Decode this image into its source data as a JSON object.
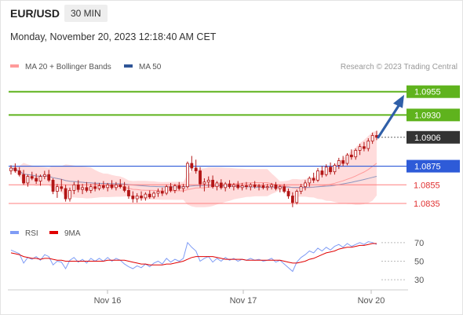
{
  "header": {
    "symbol": "EUR/USD",
    "timeframe": "30 MIN",
    "datetime": "Monday, November 20, 2023 12:18:40 AM CET"
  },
  "legend": {
    "ma20_label": "MA 20 + Bollinger Bands",
    "ma50_label": "MA 50",
    "credit": "Research © 2023 Trading Central"
  },
  "colors": {
    "resistance": "#5fb31d",
    "support": "#ff7f7f",
    "pivot": "#2e5bd8",
    "current": "#333333",
    "arrow": "#2f5fa8",
    "candle": "#b31616",
    "bollinger_fill": "#ffd6d6",
    "ma20": "#ff9a9a",
    "ma50": "#8c96be",
    "rsi": "#7f9cf5",
    "rsi_ma": "#e00000"
  },
  "chart_data": [
    {
      "type": "candlestick",
      "timeframe": "30 MIN",
      "ylim": [
        1.0808,
        1.0975
      ],
      "x_tick_labels": [
        "Nov 16",
        "Nov 17",
        "Nov 20"
      ],
      "levels": [
        {
          "name": "resistance-2",
          "value": 1.0955,
          "label": "1.0955",
          "style": "resistance"
        },
        {
          "name": "resistance-1",
          "value": 1.093,
          "label": "1.0930",
          "style": "resistance"
        },
        {
          "name": "current-price",
          "value": 1.0906,
          "label": "1.0906",
          "style": "current"
        },
        {
          "name": "pivot",
          "value": 1.0875,
          "label": "1.0875",
          "style": "pivot"
        },
        {
          "name": "support-1",
          "value": 1.0855,
          "label": "1.0855",
          "style": "support"
        },
        {
          "name": "support-2",
          "value": 1.0835,
          "label": "1.0835",
          "style": "support"
        }
      ],
      "trend_arrow": {
        "from": 1.0906,
        "to": 1.0945
      },
      "series": [
        {
          "name": "MA 20 + Bollinger Bands",
          "indicator": "ma20"
        },
        {
          "name": "MA 50",
          "indicator": "ma50"
        }
      ],
      "candles": [
        [
          1.087,
          1.0876,
          1.0866,
          1.0873
        ],
        [
          1.0873,
          1.0878,
          1.0868,
          1.087
        ],
        [
          1.087,
          1.0874,
          1.0864,
          1.0866
        ],
        [
          1.0866,
          1.0871,
          1.0855,
          1.0857
        ],
        [
          1.0857,
          1.0866,
          1.0853,
          1.0864
        ],
        [
          1.0864,
          1.0869,
          1.086,
          1.0862
        ],
        [
          1.0862,
          1.0867,
          1.0856,
          1.0859
        ],
        [
          1.0859,
          1.0866,
          1.0854,
          1.0864
        ],
        [
          1.0864,
          1.087,
          1.0861,
          1.0866
        ],
        [
          1.0866,
          1.0871,
          1.0858,
          1.086
        ],
        [
          1.086,
          1.0862,
          1.0845,
          1.0848
        ],
        [
          1.0848,
          1.0856,
          1.0841,
          1.0853
        ],
        [
          1.0853,
          1.0861,
          1.0848,
          1.0851
        ],
        [
          1.0851,
          1.0855,
          1.0837,
          1.084
        ],
        [
          1.084,
          1.0852,
          1.0837,
          1.0849
        ],
        [
          1.0849,
          1.0858,
          1.0845,
          1.0855
        ],
        [
          1.0855,
          1.086,
          1.0847,
          1.085
        ],
        [
          1.085,
          1.0856,
          1.0845,
          1.0852
        ],
        [
          1.0852,
          1.0858,
          1.0847,
          1.0849
        ],
        [
          1.0849,
          1.0856,
          1.0846,
          1.0853
        ],
        [
          1.0853,
          1.0858,
          1.0848,
          1.0851
        ],
        [
          1.0851,
          1.0857,
          1.0849,
          1.0854
        ],
        [
          1.0854,
          1.0859,
          1.085,
          1.0852
        ],
        [
          1.0852,
          1.0857,
          1.0848,
          1.0855
        ],
        [
          1.0855,
          1.086,
          1.085,
          1.0852
        ],
        [
          1.0852,
          1.0858,
          1.0849,
          1.0855
        ],
        [
          1.0855,
          1.0861,
          1.0851,
          1.0853
        ],
        [
          1.0853,
          1.0858,
          1.0847,
          1.0849
        ],
        [
          1.0849,
          1.0854,
          1.084,
          1.0843
        ],
        [
          1.0843,
          1.0848,
          1.0836,
          1.084
        ],
        [
          1.084,
          1.0846,
          1.0836,
          1.0843
        ],
        [
          1.0843,
          1.0848,
          1.0838,
          1.0841
        ],
        [
          1.0841,
          1.0847,
          1.0838,
          1.0845
        ],
        [
          1.0845,
          1.0849,
          1.084,
          1.0842
        ],
        [
          1.0842,
          1.0848,
          1.084,
          1.0846
        ],
        [
          1.0846,
          1.0851,
          1.0842,
          1.0848
        ],
        [
          1.0848,
          1.0852,
          1.0843,
          1.0846
        ],
        [
          1.0846,
          1.0855,
          1.0844,
          1.0853
        ],
        [
          1.0853,
          1.0857,
          1.0847,
          1.0849
        ],
        [
          1.0849,
          1.0856,
          1.0846,
          1.0854
        ],
        [
          1.0854,
          1.0858,
          1.0849,
          1.0851
        ],
        [
          1.0851,
          1.0856,
          1.0847,
          1.0853
        ],
        [
          1.0853,
          1.088,
          1.0851,
          1.0878
        ],
        [
          1.0878,
          1.0886,
          1.087,
          1.0873
        ],
        [
          1.0873,
          1.0882,
          1.0867,
          1.087
        ],
        [
          1.087,
          1.0874,
          1.0852,
          1.0856
        ],
        [
          1.0856,
          1.0862,
          1.0848,
          1.0858
        ],
        [
          1.0858,
          1.0864,
          1.0852,
          1.086
        ],
        [
          1.086,
          1.0865,
          1.0851,
          1.0853
        ],
        [
          1.0853,
          1.0859,
          1.0849,
          1.0857
        ],
        [
          1.0857,
          1.0861,
          1.085,
          1.0852
        ],
        [
          1.0852,
          1.0858,
          1.0848,
          1.0856
        ],
        [
          1.0856,
          1.086,
          1.0851,
          1.0853
        ],
        [
          1.0853,
          1.0857,
          1.0849,
          1.0855
        ],
        [
          1.0855,
          1.0859,
          1.085,
          1.0852
        ],
        [
          1.0852,
          1.0857,
          1.0849,
          1.0854
        ],
        [
          1.0854,
          1.0858,
          1.085,
          1.0853
        ],
        [
          1.0853,
          1.0857,
          1.0849,
          1.0855
        ],
        [
          1.0855,
          1.0859,
          1.0851,
          1.0853
        ],
        [
          1.0853,
          1.0856,
          1.0849,
          1.0854
        ],
        [
          1.0854,
          1.0857,
          1.085,
          1.0852
        ],
        [
          1.0852,
          1.0856,
          1.0849,
          1.0853
        ],
        [
          1.0853,
          1.0857,
          1.085,
          1.0855
        ],
        [
          1.0855,
          1.0858,
          1.0849,
          1.0851
        ],
        [
          1.0851,
          1.0855,
          1.0847,
          1.0853
        ],
        [
          1.0853,
          1.0856,
          1.0846,
          1.0848
        ],
        [
          1.0848,
          1.0851,
          1.084,
          1.0843
        ],
        [
          1.0843,
          1.0847,
          1.0831,
          1.0836
        ],
        [
          1.0836,
          1.085,
          1.0834,
          1.0848
        ],
        [
          1.0848,
          1.0856,
          1.0845,
          1.0853
        ],
        [
          1.0853,
          1.086,
          1.0849,
          1.0857
        ],
        [
          1.0857,
          1.0864,
          1.0853,
          1.0862
        ],
        [
          1.0862,
          1.0868,
          1.0857,
          1.086
        ],
        [
          1.086,
          1.0873,
          1.0858,
          1.087
        ],
        [
          1.087,
          1.0875,
          1.0863,
          1.0866
        ],
        [
          1.0866,
          1.0877,
          1.0864,
          1.0874
        ],
        [
          1.0874,
          1.0879,
          1.0866,
          1.0869
        ],
        [
          1.0869,
          1.0878,
          1.0866,
          1.0876
        ],
        [
          1.0876,
          1.0884,
          1.0872,
          1.0881
        ],
        [
          1.0881,
          1.0886,
          1.0875,
          1.0878
        ],
        [
          1.0878,
          1.0889,
          1.0876,
          1.0887
        ],
        [
          1.0887,
          1.0893,
          1.0882,
          1.0885
        ],
        [
          1.0885,
          1.0894,
          1.0882,
          1.0892
        ],
        [
          1.0892,
          1.0899,
          1.0887,
          1.0896
        ],
        [
          1.0896,
          1.0901,
          1.0891,
          1.0894
        ],
        [
          1.0894,
          1.0905,
          1.0891,
          1.0902
        ],
        [
          1.0902,
          1.0911,
          1.0899,
          1.0908
        ],
        [
          1.0908,
          1.0913,
          1.0903,
          1.0906
        ]
      ]
    },
    {
      "type": "line",
      "title": "RSI",
      "ylim": [
        20,
        80
      ],
      "y_ticks": [
        70,
        50,
        30
      ],
      "series": [
        {
          "name": "RSI",
          "indicator": "rsi",
          "values": [
            62,
            60,
            58,
            48,
            54,
            52,
            55,
            51,
            57,
            55,
            46,
            50,
            49,
            42,
            51,
            54,
            49,
            52,
            48,
            53,
            50,
            53,
            50,
            54,
            50,
            53,
            51,
            47,
            44,
            42,
            45,
            43,
            47,
            44,
            48,
            50,
            47,
            53,
            49,
            52,
            50,
            53,
            70,
            65,
            61,
            50,
            53,
            55,
            49,
            53,
            50,
            54,
            51,
            53,
            50,
            52,
            51,
            53,
            51,
            52,
            50,
            51,
            53,
            49,
            51,
            47,
            43,
            39,
            49,
            54,
            57,
            61,
            59,
            64,
            61,
            65,
            62,
            66,
            68,
            65,
            69,
            66,
            68,
            70,
            68,
            71,
            70,
            68
          ]
        },
        {
          "name": "9MA",
          "indicator": "rsi_ma",
          "values": [
            59,
            58,
            57,
            55,
            54,
            53,
            53,
            52,
            53,
            53,
            52,
            51,
            51,
            50,
            50,
            50,
            50,
            50,
            50,
            50,
            50,
            50,
            50,
            51,
            51,
            51,
            51,
            51,
            50,
            49,
            48,
            47,
            47,
            46,
            46,
            46,
            46,
            47,
            47,
            48,
            49,
            50,
            52,
            54,
            55,
            55,
            55,
            55,
            55,
            54,
            53,
            52,
            52,
            52,
            52,
            52,
            51,
            51,
            51,
            51,
            51,
            51,
            51,
            51,
            51,
            50,
            49,
            48,
            48,
            49,
            50,
            52,
            53,
            55,
            57,
            59,
            60,
            61,
            63,
            64,
            65,
            65,
            66,
            67,
            67,
            68,
            69,
            69
          ]
        }
      ]
    }
  ]
}
